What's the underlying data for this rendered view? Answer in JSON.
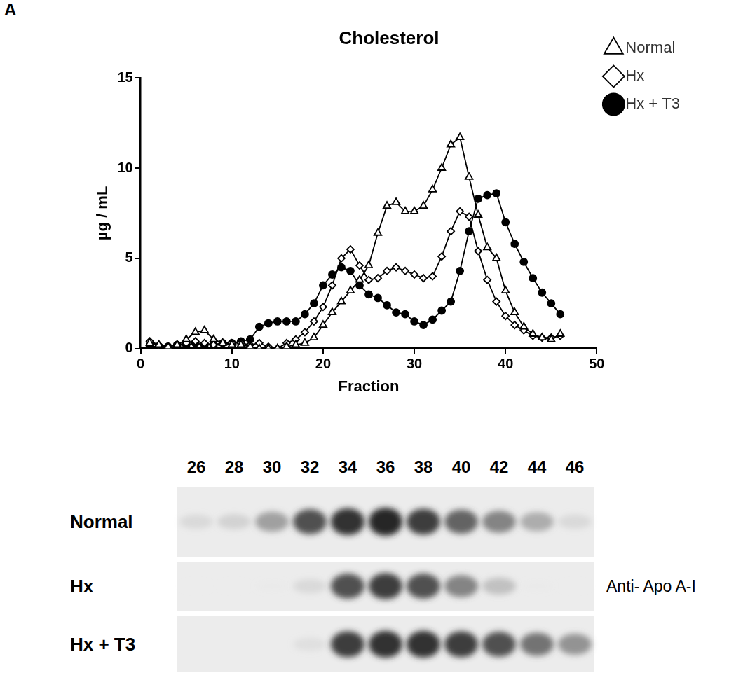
{
  "panel_label": "A",
  "chart_data": {
    "type": "line",
    "title": "Cholesterol",
    "x_label": "Fraction",
    "y_label": "µg / mL",
    "x": [
      1,
      2,
      3,
      4,
      5,
      6,
      7,
      8,
      9,
      10,
      11,
      12,
      13,
      14,
      15,
      16,
      17,
      18,
      19,
      20,
      21,
      22,
      23,
      24,
      25,
      26,
      27,
      28,
      29,
      30,
      31,
      32,
      33,
      34,
      35,
      36,
      37,
      38,
      39,
      40,
      41,
      42,
      43,
      44,
      45,
      46
    ],
    "series": [
      {
        "name": "Normal",
        "color": "#000000",
        "marker": "open-triangle",
        "values": [
          0.3,
          0.2,
          0.1,
          0.2,
          0.5,
          0.9,
          1.0,
          0.5,
          0.3,
          0.2,
          0.2,
          0.1,
          0,
          0,
          0,
          0.1,
          0.2,
          0.3,
          0.6,
          1.3,
          2.0,
          2.6,
          3.2,
          3.8,
          4.6,
          6.4,
          7.9,
          8.1,
          7.6,
          7.6,
          7.9,
          8.8,
          10.0,
          11.3,
          11.7,
          9.5,
          7.4,
          5.6,
          5.0,
          3.2,
          2.0,
          1.2,
          0.8,
          0.6,
          0.5,
          0.8
        ]
      },
      {
        "name": "Hx",
        "color": "#000000",
        "marker": "open-diamond",
        "values": [
          0.4,
          0.2,
          0.1,
          0.2,
          0.3,
          0.4,
          0.3,
          0.2,
          0.3,
          0.3,
          0.3,
          0.2,
          0.3,
          0.1,
          0,
          0.3,
          0.5,
          0.9,
          1.5,
          2.3,
          3.5,
          5.0,
          5.5,
          4.6,
          3.8,
          3.9,
          4.3,
          4.5,
          4.3,
          4.1,
          3.9,
          4.0,
          5.1,
          6.5,
          7.6,
          7.3,
          5.4,
          3.8,
          2.6,
          1.8,
          1.3,
          1.0,
          0.7,
          0.6,
          0.6,
          0.7
        ]
      },
      {
        "name": "Hx + T3",
        "color": "#000000",
        "marker": "filled-circle",
        "values": [
          0.1,
          0.1,
          0.1,
          0.2,
          0.2,
          0.3,
          0.2,
          0.2,
          0.3,
          0.3,
          0.4,
          0.5,
          1.2,
          1.4,
          1.5,
          1.5,
          1.5,
          1.9,
          2.5,
          3.5,
          4.1,
          4.5,
          4.3,
          3.5,
          3.0,
          2.8,
          2.4,
          2.0,
          1.9,
          1.5,
          1.3,
          1.6,
          2.1,
          2.6,
          4.3,
          6.5,
          8.3,
          8.5,
          8.6,
          7.0,
          5.8,
          4.8,
          3.9,
          3.1,
          2.5,
          1.9
        ]
      }
    ],
    "xlim": [
      0,
      50
    ],
    "xticks": [
      0,
      10,
      20,
      30,
      40,
      50
    ],
    "ylim": [
      0,
      15
    ],
    "yticks": [
      0,
      5,
      10,
      15
    ],
    "grid": false,
    "legend": "top-right"
  },
  "blot": {
    "fractions": [
      "26",
      "28",
      "30",
      "32",
      "34",
      "36",
      "38",
      "40",
      "42",
      "44",
      "46"
    ],
    "antibody": "Anti- Apo A-I",
    "rows": [
      {
        "label": "Normal",
        "band_intensity": [
          0.3,
          0.35,
          0.6,
          0.85,
          0.95,
          1.0,
          0.9,
          0.8,
          0.7,
          0.55,
          0.3
        ]
      },
      {
        "label": "Hx",
        "band_intensity": [
          0.05,
          0.05,
          0.1,
          0.3,
          0.85,
          0.9,
          0.85,
          0.7,
          0.45,
          0.1,
          0.05
        ]
      },
      {
        "label": "Hx + T3",
        "band_intensity": [
          0,
          0,
          0,
          0.25,
          0.9,
          0.95,
          0.95,
          0.9,
          0.85,
          0.75,
          0.65
        ]
      }
    ]
  }
}
